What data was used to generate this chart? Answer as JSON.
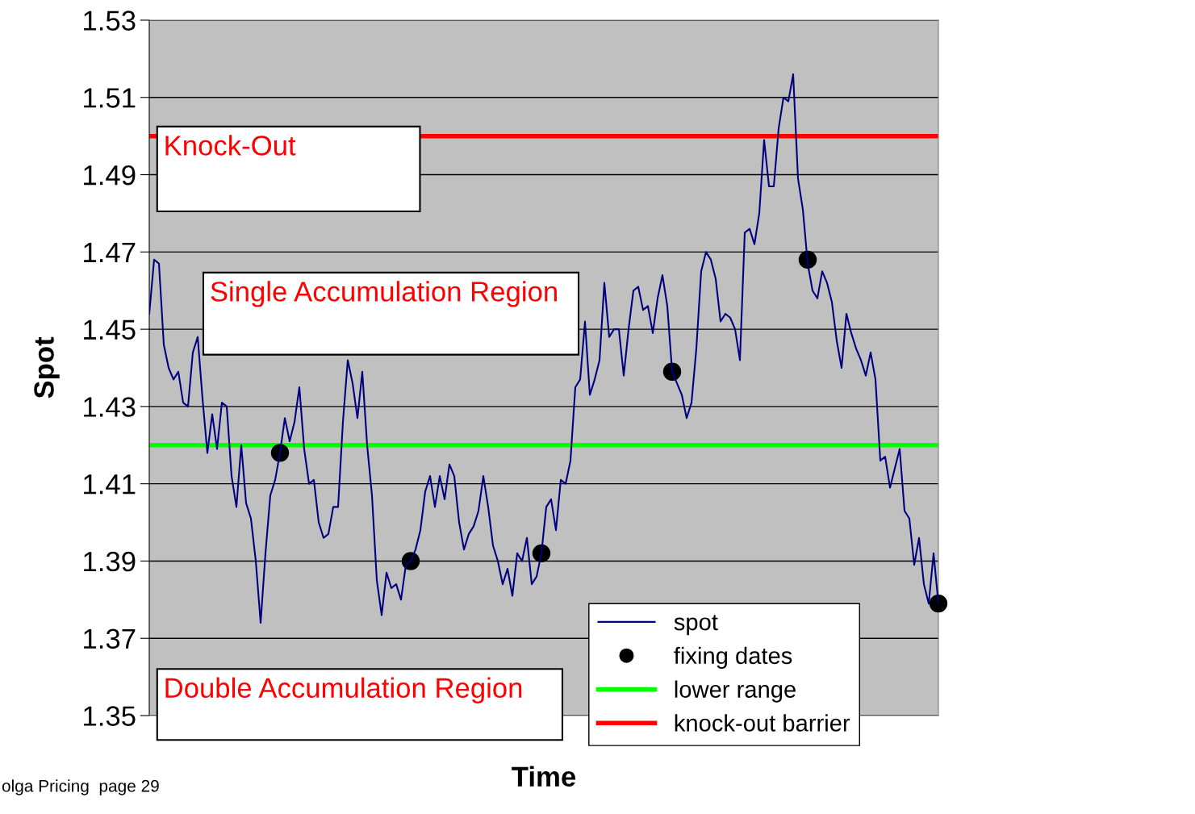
{
  "chart_data": {
    "type": "line",
    "xlabel": "Time",
    "ylabel": "Spot",
    "categories": [
      null,
      null,
      null,
      null,
      null,
      null,
      null,
      null,
      null,
      null,
      null,
      null,
      null,
      null,
      null,
      null,
      null,
      null,
      null,
      null,
      null,
      null,
      null,
      null,
      null,
      null,
      null,
      null,
      null,
      null,
      null,
      null,
      null,
      null,
      null,
      null,
      null,
      null,
      null,
      null,
      null,
      null,
      null,
      null,
      null,
      null,
      null,
      null,
      null,
      null,
      null,
      null,
      null,
      null,
      null,
      null,
      null,
      null,
      null,
      null,
      null,
      null,
      null,
      null,
      null,
      null,
      null,
      null,
      null,
      null,
      null,
      null,
      null,
      null,
      null,
      null,
      null,
      null,
      null,
      null,
      null,
      null,
      null,
      null,
      null,
      null,
      null,
      null,
      null,
      null,
      null,
      null,
      null,
      null,
      null,
      null,
      null,
      null,
      null,
      null,
      null,
      null,
      null,
      null,
      null,
      null,
      null,
      null,
      null,
      null,
      null,
      null,
      null,
      null,
      null,
      null,
      null,
      null,
      null,
      null,
      null,
      null,
      null,
      null,
      null,
      null,
      null,
      null,
      null,
      null,
      null,
      null,
      null,
      null,
      null,
      null,
      null,
      null,
      null,
      null,
      null,
      null,
      null,
      null,
      null,
      null,
      null,
      null,
      null,
      null,
      null,
      null,
      null,
      null,
      null,
      null,
      null,
      null,
      null,
      null,
      null,
      null,
      null,
      null
    ],
    "series": [
      {
        "name": "spot",
        "color": "#000080",
        "values": [
          1.454,
          1.468,
          1.467,
          1.446,
          1.44,
          1.437,
          1.439,
          1.431,
          1.43,
          1.444,
          1.448,
          1.432,
          1.418,
          1.428,
          1.419,
          1.431,
          1.43,
          1.412,
          1.404,
          1.42,
          1.405,
          1.401,
          1.39,
          1.374,
          1.392,
          1.407,
          1.411,
          1.418,
          1.427,
          1.421,
          1.426,
          1.435,
          1.419,
          1.41,
          1.411,
          1.4,
          1.396,
          1.397,
          1.404,
          1.404,
          1.426,
          1.442,
          1.436,
          1.427,
          1.439,
          1.42,
          1.407,
          1.385,
          1.376,
          1.387,
          1.383,
          1.384,
          1.38,
          1.389,
          1.39,
          1.393,
          1.398,
          1.408,
          1.412,
          1.404,
          1.412,
          1.406,
          1.415,
          1.412,
          1.4,
          1.393,
          1.397,
          1.399,
          1.403,
          1.412,
          1.404,
          1.394,
          1.39,
          1.384,
          1.388,
          1.381,
          1.392,
          1.39,
          1.396,
          1.384,
          1.386,
          1.392,
          1.404,
          1.406,
          1.398,
          1.411,
          1.41,
          1.416,
          1.435,
          1.437,
          1.452,
          1.433,
          1.437,
          1.442,
          1.462,
          1.448,
          1.45,
          1.45,
          1.438,
          1.45,
          1.46,
          1.461,
          1.455,
          1.456,
          1.449,
          1.458,
          1.464,
          1.456,
          1.439,
          1.436,
          1.433,
          1.427,
          1.431,
          1.445,
          1.465,
          1.47,
          1.468,
          1.463,
          1.452,
          1.454,
          1.453,
          1.45,
          1.442,
          1.475,
          1.476,
          1.472,
          1.48,
          1.499,
          1.487,
          1.487,
          1.502,
          1.51,
          1.509,
          1.516,
          1.489,
          1.481,
          1.467,
          1.46,
          1.458,
          1.465,
          1.462,
          1.457,
          1.447,
          1.44,
          1.454,
          1.449,
          1.445,
          1.442,
          1.438,
          1.444,
          1.437,
          1.416,
          1.417,
          1.409,
          1.414,
          1.419,
          1.403,
          1.401,
          1.389,
          1.396,
          1.384,
          1.379,
          1.392,
          1.379
        ]
      },
      {
        "name": "fixing dates",
        "type": "scatter",
        "color": "#000000",
        "marker": "circle",
        "values": [
          null,
          null,
          null,
          null,
          null,
          null,
          null,
          null,
          null,
          null,
          null,
          null,
          null,
          null,
          null,
          null,
          null,
          null,
          null,
          null,
          null,
          null,
          null,
          null,
          null,
          null,
          null,
          1.418,
          null,
          null,
          null,
          null,
          null,
          null,
          null,
          null,
          null,
          null,
          null,
          null,
          null,
          null,
          null,
          null,
          null,
          null,
          null,
          null,
          null,
          null,
          null,
          null,
          null,
          null,
          1.39,
          null,
          null,
          null,
          null,
          null,
          null,
          null,
          null,
          null,
          null,
          null,
          null,
          null,
          null,
          null,
          null,
          null,
          null,
          null,
          null,
          null,
          null,
          null,
          null,
          null,
          null,
          1.392,
          null,
          null,
          null,
          null,
          null,
          null,
          null,
          null,
          null,
          null,
          null,
          null,
          null,
          null,
          null,
          null,
          null,
          null,
          null,
          null,
          null,
          null,
          null,
          null,
          null,
          null,
          1.439,
          null,
          null,
          null,
          null,
          null,
          null,
          null,
          null,
          null,
          null,
          null,
          null,
          null,
          null,
          null,
          null,
          null,
          null,
          null,
          null,
          null,
          null,
          null,
          null,
          null,
          null,
          null,
          1.468,
          null,
          null,
          null,
          null,
          null,
          null,
          null,
          null,
          null,
          null,
          null,
          null,
          null,
          null,
          null,
          null,
          null,
          null,
          null,
          null,
          null,
          null,
          null,
          null,
          null,
          null,
          1.379
        ]
      }
    ],
    "ref_lines": [
      {
        "axis": "y",
        "value": 1.42,
        "label": "lower range",
        "color": "#00ff00"
      },
      {
        "axis": "y",
        "value": 1.5,
        "label": "knock-out barrier",
        "color": "#ff0000"
      }
    ],
    "ylim": [
      1.35,
      1.53
    ],
    "yticks": [
      1.35,
      1.37,
      1.39,
      1.41,
      1.43,
      1.45,
      1.47,
      1.49,
      1.51,
      1.53
    ],
    "grid": "y",
    "legend": "bottom right",
    "tick_labels": "y",
    "annotations": [
      "Knock-Out",
      "Single Accumulation Region",
      "Double Accumulation Region",
      "olga Pricing  page 29"
    ]
  }
}
